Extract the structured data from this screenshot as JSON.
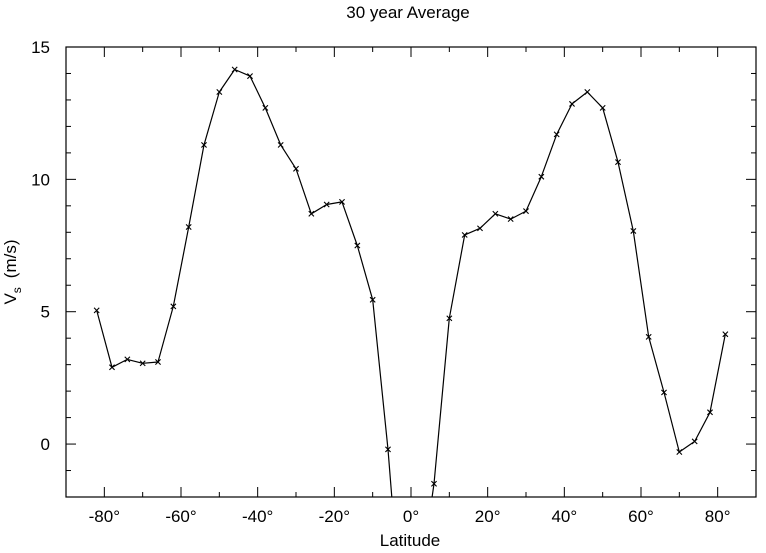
{
  "chart_data": {
    "type": "line",
    "title": "30  year  Average",
    "xlabel": "Latitude",
    "ylabel": "V",
    "ylabel_sub": "s",
    "ylabel_unit": "(m/s)",
    "xlim": [
      -90,
      90
    ],
    "ylim": [
      -2,
      15
    ],
    "grid": false,
    "legend": "none",
    "line_color": "#000000",
    "marker": "x",
    "xticks": [
      {
        "value": -80,
        "label": "-80°"
      },
      {
        "value": -60,
        "label": "-60°"
      },
      {
        "value": -40,
        "label": "-40°"
      },
      {
        "value": -20,
        "label": "-20°"
      },
      {
        "value": 0,
        "label": "0°"
      },
      {
        "value": 20,
        "label": "20°"
      },
      {
        "value": 40,
        "label": "40°"
      },
      {
        "value": 60,
        "label": "60°"
      },
      {
        "value": 80,
        "label": "80°"
      }
    ],
    "yticks": [
      {
        "value": 0,
        "label": "0"
      },
      {
        "value": 5,
        "label": "5"
      },
      {
        "value": 10,
        "label": "10"
      },
      {
        "value": 15,
        "label": "15"
      }
    ],
    "series": [
      {
        "x": [
          -82,
          -78,
          -74,
          -70,
          -66,
          -62,
          -58,
          -54,
          -50,
          -46,
          -42,
          -38,
          -34,
          -30,
          -26,
          -22,
          -18,
          -14,
          -10,
          -6,
          -5
        ],
        "y": [
          5.05,
          2.9,
          3.2,
          3.05,
          3.1,
          5.2,
          8.2,
          11.3,
          13.3,
          14.15,
          13.9,
          12.7,
          11.3,
          10.4,
          8.7,
          9.05,
          9.15,
          7.5,
          5.45,
          -0.2,
          -2.0
        ]
      },
      {
        "x": [
          5.5,
          6,
          10,
          14,
          18,
          22,
          26,
          30,
          34,
          38,
          42,
          46,
          50,
          54,
          58,
          62,
          66,
          70,
          74,
          78,
          82
        ],
        "y": [
          -2.0,
          -1.5,
          4.75,
          7.9,
          8.15,
          8.7,
          8.5,
          8.8,
          10.1,
          11.7,
          12.85,
          13.3,
          12.7,
          10.65,
          8.05,
          4.05,
          1.95,
          -0.3,
          0.1,
          1.2,
          4.15
        ]
      }
    ],
    "marker_points": [
      {
        "x": -82,
        "y": 5.05
      },
      {
        "x": -78,
        "y": 2.9
      },
      {
        "x": -74,
        "y": 3.2
      },
      {
        "x": -70,
        "y": 3.05
      },
      {
        "x": -66,
        "y": 3.1
      },
      {
        "x": -62,
        "y": 5.2
      },
      {
        "x": -58,
        "y": 8.2
      },
      {
        "x": -54,
        "y": 11.3
      },
      {
        "x": -50,
        "y": 13.3
      },
      {
        "x": -46,
        "y": 14.15
      },
      {
        "x": -42,
        "y": 13.9
      },
      {
        "x": -38,
        "y": 12.7
      },
      {
        "x": -34,
        "y": 11.3
      },
      {
        "x": -30,
        "y": 10.4
      },
      {
        "x": -26,
        "y": 8.7
      },
      {
        "x": -22,
        "y": 9.05
      },
      {
        "x": -18,
        "y": 9.15
      },
      {
        "x": -14,
        "y": 7.5
      },
      {
        "x": -10,
        "y": 5.45
      },
      {
        "x": -6,
        "y": -0.2
      },
      {
        "x": 6,
        "y": -1.5
      },
      {
        "x": 10,
        "y": 4.75
      },
      {
        "x": 14,
        "y": 7.9
      },
      {
        "x": 18,
        "y": 8.15
      },
      {
        "x": 22,
        "y": 8.7
      },
      {
        "x": 26,
        "y": 8.5
      },
      {
        "x": 30,
        "y": 8.8
      },
      {
        "x": 34,
        "y": 10.1
      },
      {
        "x": 38,
        "y": 11.7
      },
      {
        "x": 42,
        "y": 12.85
      },
      {
        "x": 46,
        "y": 13.3
      },
      {
        "x": 50,
        "y": 12.7
      },
      {
        "x": 54,
        "y": 10.65
      },
      {
        "x": 58,
        "y": 8.05
      },
      {
        "x": 62,
        "y": 4.05
      },
      {
        "x": 66,
        "y": 1.95
      },
      {
        "x": 70,
        "y": -0.3
      },
      {
        "x": 74,
        "y": 0.1
      },
      {
        "x": 78,
        "y": 1.2
      },
      {
        "x": 82,
        "y": 4.15
      }
    ]
  }
}
